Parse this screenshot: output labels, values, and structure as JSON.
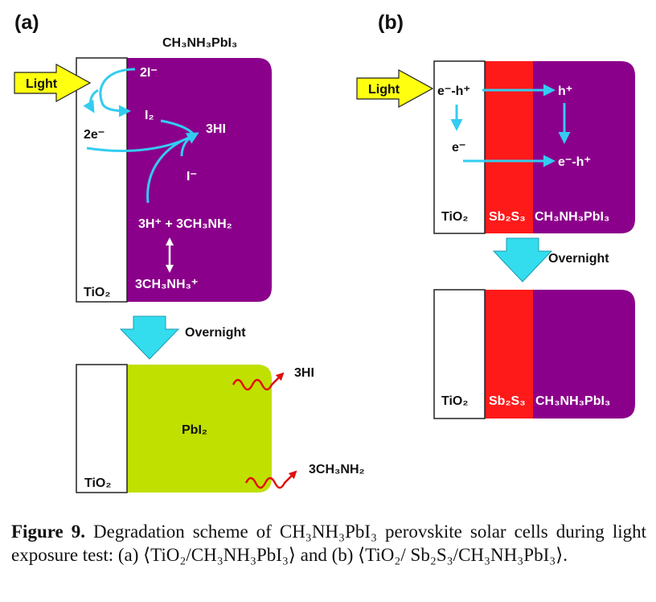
{
  "panel_a": {
    "tag": "(a)",
    "perovskite_label": "CH₃NH₃PbI₃",
    "light_label": "Light",
    "tio2_label": "TiO₂",
    "species": {
      "two_i_minus": "2I⁻",
      "i2": "I₂",
      "two_e_minus": "2e⁻",
      "three_hi": "3HI",
      "i_minus": "I⁻",
      "products": "3H⁺ + 3CH₃NH₂",
      "methylammonium": "3CH₃NH₃⁺"
    },
    "overnight_label": "Overnight",
    "pbi2_label": "PbI₂",
    "released_hi": "3HI",
    "released_ch3nh2": "3CH₃NH₂"
  },
  "panel_b": {
    "tag": "(b)",
    "light_label": "Light",
    "exciton_label": "e⁻-h⁺",
    "hole_label": "h⁺",
    "electron_label": "e⁻",
    "recombined_label": "e⁻-h⁺",
    "tio2_label": "TiO₂",
    "sb2s3_label": "Sb₂S₃",
    "perovskite_label": "CH₃NH₃PbI₃",
    "overnight_label": "Overnight",
    "after_tio2_label": "TiO₂",
    "after_sb2s3_label": "Sb₂S₃",
    "after_perovskite_label": "CH₃NH₃PbI₃"
  },
  "caption": {
    "figure_label": "Figure 9.",
    "text": " Degradation scheme of CH₃NH₃PbI₃ perovskite solar cells during light exposure test: (a) ⟨TiO₂/CH₃NH₃PbI₃⟩ and (b) ⟨TiO₂/ Sb₂S₃/CH₃NH₃PbI₃⟩."
  },
  "colors": {
    "perovskite": "#8b008b",
    "pbi2": "#c0e000",
    "sb2s3": "#ff1a1a",
    "arrow_cyan": "#33ccf0",
    "light_yellow": "#ffff10",
    "wave_red": "#e01010"
  }
}
